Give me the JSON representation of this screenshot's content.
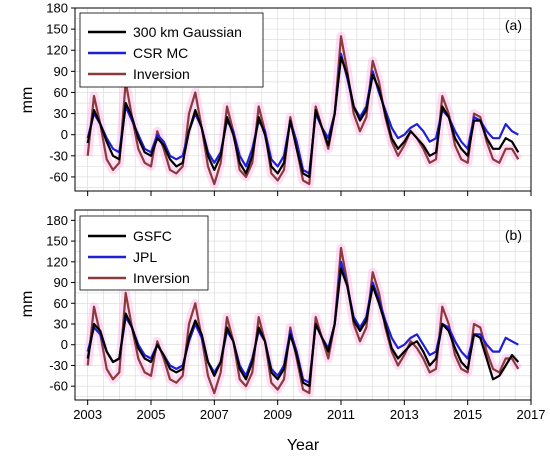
{
  "chart_data": [
    {
      "type": "line",
      "panel_label": "(a)",
      "ylabel": "mm",
      "xlabel": "",
      "ylim": [
        -80,
        180
      ],
      "xlim": [
        2002.6,
        2017
      ],
      "y_ticks": [
        -60,
        -30,
        0,
        30,
        60,
        90,
        120,
        150,
        180
      ],
      "x_ticks": [
        2003,
        2005,
        2007,
        2009,
        2011,
        2013,
        2015,
        2017
      ],
      "x_tick_labels_shown": false,
      "grid": true,
      "legend_position": "top-left",
      "series": [
        {
          "name": "300 km Gaussian",
          "color": "#000000",
          "x": [
            2003.0,
            2003.2,
            2003.4,
            2003.6,
            2003.8,
            2004.0,
            2004.2,
            2004.4,
            2004.6,
            2004.8,
            2005.0,
            2005.2,
            2005.4,
            2005.6,
            2005.8,
            2006.0,
            2006.2,
            2006.4,
            2006.6,
            2006.8,
            2007.0,
            2007.2,
            2007.4,
            2007.6,
            2007.8,
            2008.0,
            2008.2,
            2008.4,
            2008.6,
            2008.8,
            2009.0,
            2009.2,
            2009.4,
            2009.6,
            2009.8,
            2010.0,
            2010.2,
            2010.4,
            2010.6,
            2010.8,
            2011.0,
            2011.2,
            2011.4,
            2011.6,
            2011.8,
            2012.0,
            2012.2,
            2012.4,
            2012.6,
            2012.8,
            2013.0,
            2013.2,
            2013.4,
            2013.6,
            2013.8,
            2014.0,
            2014.2,
            2014.4,
            2014.6,
            2014.8,
            2015.0,
            2015.2,
            2015.4,
            2015.6,
            2015.8,
            2016.0,
            2016.2,
            2016.4,
            2016.6
          ],
          "y": [
            -12,
            35,
            15,
            -10,
            -30,
            -35,
            45,
            25,
            -5,
            -25,
            -30,
            -5,
            -15,
            -35,
            -45,
            -40,
            5,
            35,
            10,
            -30,
            -50,
            -30,
            25,
            0,
            -40,
            -55,
            -30,
            25,
            0,
            -45,
            -55,
            -40,
            20,
            -20,
            -55,
            -60,
            35,
            10,
            -15,
            30,
            110,
            85,
            40,
            20,
            35,
            85,
            65,
            30,
            -5,
            -20,
            -10,
            5,
            -5,
            -15,
            -30,
            -25,
            40,
            25,
            -5,
            -20,
            -30,
            20,
            20,
            -5,
            -20,
            -20,
            -5,
            -10,
            -25
          ]
        },
        {
          "name": "CSR MC",
          "color": "#1f1fd6",
          "x": [
            2003.0,
            2003.2,
            2003.4,
            2003.6,
            2003.8,
            2004.0,
            2004.2,
            2004.4,
            2004.6,
            2004.8,
            2005.0,
            2005.2,
            2005.4,
            2005.6,
            2005.8,
            2006.0,
            2006.2,
            2006.4,
            2006.6,
            2006.8,
            2007.0,
            2007.2,
            2007.4,
            2007.6,
            2007.8,
            2008.0,
            2008.2,
            2008.4,
            2008.6,
            2008.8,
            2009.0,
            2009.2,
            2009.4,
            2009.6,
            2009.8,
            2010.0,
            2010.2,
            2010.4,
            2010.6,
            2010.8,
            2011.0,
            2011.2,
            2011.4,
            2011.6,
            2011.8,
            2012.0,
            2012.2,
            2012.4,
            2012.6,
            2012.8,
            2013.0,
            2013.2,
            2013.4,
            2013.6,
            2013.8,
            2014.0,
            2014.2,
            2014.4,
            2014.6,
            2014.8,
            2015.0,
            2015.2,
            2015.4,
            2015.6,
            2015.8,
            2016.0,
            2016.2,
            2016.4,
            2016.6
          ],
          "y": [
            -5,
            30,
            15,
            -5,
            -20,
            -25,
            40,
            20,
            0,
            -20,
            -25,
            0,
            -10,
            -30,
            -35,
            -30,
            5,
            30,
            10,
            -25,
            -40,
            -25,
            20,
            5,
            -30,
            -45,
            -20,
            20,
            5,
            -35,
            -45,
            -30,
            20,
            -10,
            -50,
            -55,
            30,
            10,
            -5,
            30,
            115,
            80,
            40,
            25,
            40,
            90,
            60,
            35,
            10,
            -5,
            0,
            10,
            15,
            5,
            -10,
            -5,
            35,
            25,
            5,
            -10,
            -20,
            25,
            20,
            5,
            -5,
            -5,
            15,
            5,
            0
          ]
        },
        {
          "name": "Inversion",
          "color": "#8b3a3a",
          "x": [
            2003.0,
            2003.2,
            2003.4,
            2003.6,
            2003.8,
            2004.0,
            2004.2,
            2004.4,
            2004.6,
            2004.8,
            2005.0,
            2005.2,
            2005.4,
            2005.6,
            2005.8,
            2006.0,
            2006.2,
            2006.4,
            2006.6,
            2006.8,
            2007.0,
            2007.2,
            2007.4,
            2007.6,
            2007.8,
            2008.0,
            2008.2,
            2008.4,
            2008.6,
            2008.8,
            2009.0,
            2009.2,
            2009.4,
            2009.6,
            2009.8,
            2010.0,
            2010.2,
            2010.4,
            2010.6,
            2010.8,
            2011.0,
            2011.2,
            2011.4,
            2011.6,
            2011.8,
            2012.0,
            2012.2,
            2012.4,
            2012.6,
            2012.8,
            2013.0,
            2013.2,
            2013.4,
            2013.6,
            2013.8,
            2014.0,
            2014.2,
            2014.4,
            2014.6,
            2014.8,
            2015.0,
            2015.2,
            2015.4,
            2015.6,
            2015.8,
            2016.0,
            2016.2,
            2016.4,
            2016.6
          ],
          "y": [
            -30,
            55,
            15,
            -35,
            -50,
            -40,
            75,
            25,
            -20,
            -40,
            -45,
            5,
            -20,
            -50,
            -55,
            -45,
            30,
            60,
            10,
            -45,
            -70,
            -40,
            40,
            5,
            -50,
            -60,
            -40,
            40,
            5,
            -55,
            -65,
            -50,
            25,
            -20,
            -65,
            -70,
            40,
            10,
            -20,
            30,
            140,
            90,
            30,
            5,
            25,
            105,
            75,
            25,
            -10,
            -30,
            -15,
            5,
            -5,
            -20,
            -40,
            -35,
            55,
            30,
            -15,
            -35,
            -40,
            30,
            25,
            -10,
            -35,
            -40,
            -20,
            -20,
            -35
          ]
        }
      ]
    },
    {
      "type": "line",
      "panel_label": "(b)",
      "ylabel": "mm",
      "xlabel": "Year",
      "ylim": [
        -80,
        195
      ],
      "xlim": [
        2002.6,
        2017
      ],
      "y_ticks": [
        -60,
        -30,
        0,
        30,
        60,
        90,
        120,
        150,
        180
      ],
      "x_ticks": [
        2003,
        2005,
        2007,
        2009,
        2011,
        2013,
        2015,
        2017
      ],
      "x_tick_labels": [
        "2003",
        "2005",
        "2007",
        "2009",
        "2011",
        "2013",
        "2015",
        "2017"
      ],
      "grid": true,
      "legend_position": "top-left",
      "series": [
        {
          "name": "GSFC",
          "color": "#000000",
          "x": [
            2003.0,
            2003.2,
            2003.4,
            2003.6,
            2003.8,
            2004.0,
            2004.2,
            2004.4,
            2004.6,
            2004.8,
            2005.0,
            2005.2,
            2005.4,
            2005.6,
            2005.8,
            2006.0,
            2006.2,
            2006.4,
            2006.6,
            2006.8,
            2007.0,
            2007.2,
            2007.4,
            2007.6,
            2007.8,
            2008.0,
            2008.2,
            2008.4,
            2008.6,
            2008.8,
            2009.0,
            2009.2,
            2009.4,
            2009.6,
            2009.8,
            2010.0,
            2010.2,
            2010.4,
            2010.6,
            2010.8,
            2011.0,
            2011.2,
            2011.4,
            2011.6,
            2011.8,
            2012.0,
            2012.2,
            2012.4,
            2012.6,
            2012.8,
            2013.0,
            2013.2,
            2013.4,
            2013.6,
            2013.8,
            2014.0,
            2014.2,
            2014.4,
            2014.6,
            2014.8,
            2015.0,
            2015.2,
            2015.4,
            2015.6,
            2015.8,
            2016.0,
            2016.2,
            2016.4,
            2016.6
          ],
          "y": [
            -20,
            30,
            20,
            -10,
            -25,
            -20,
            45,
            25,
            -5,
            -20,
            -25,
            0,
            -15,
            -35,
            -40,
            -35,
            10,
            35,
            15,
            -25,
            -45,
            -25,
            25,
            5,
            -35,
            -50,
            -25,
            25,
            5,
            -40,
            -50,
            -35,
            15,
            -15,
            -55,
            -60,
            30,
            10,
            -10,
            30,
            110,
            85,
            35,
            20,
            35,
            85,
            60,
            30,
            -5,
            -20,
            -10,
            0,
            5,
            -10,
            -30,
            -20,
            30,
            20,
            -5,
            -25,
            -35,
            15,
            10,
            -20,
            -50,
            -45,
            -30,
            -15,
            -25
          ]
        },
        {
          "name": "JPL",
          "color": "#1f1fd6",
          "x": [
            2003.0,
            2003.2,
            2003.4,
            2003.6,
            2003.8,
            2004.0,
            2004.2,
            2004.4,
            2004.6,
            2004.8,
            2005.0,
            2005.2,
            2005.4,
            2005.6,
            2005.8,
            2006.0,
            2006.2,
            2006.4,
            2006.6,
            2006.8,
            2007.0,
            2007.2,
            2007.4,
            2007.6,
            2007.8,
            2008.0,
            2008.2,
            2008.4,
            2008.6,
            2008.8,
            2009.0,
            2009.2,
            2009.4,
            2009.6,
            2009.8,
            2010.0,
            2010.2,
            2010.4,
            2010.6,
            2010.8,
            2011.0,
            2011.2,
            2011.4,
            2011.6,
            2011.8,
            2012.0,
            2012.2,
            2012.4,
            2012.6,
            2012.8,
            2013.0,
            2013.2,
            2013.4,
            2013.6,
            2013.8,
            2014.0,
            2014.2,
            2014.4,
            2014.6,
            2014.8,
            2015.0,
            2015.2,
            2015.4,
            2015.6,
            2015.8,
            2016.0,
            2016.2,
            2016.4,
            2016.6
          ],
          "y": [
            -10,
            25,
            15,
            -10,
            -25,
            -20,
            40,
            25,
            0,
            -15,
            -20,
            0,
            -15,
            -30,
            -35,
            -30,
            5,
            30,
            10,
            -25,
            -40,
            -25,
            20,
            5,
            -30,
            -45,
            -20,
            20,
            5,
            -35,
            -45,
            -30,
            20,
            -10,
            -50,
            -55,
            30,
            10,
            -5,
            30,
            120,
            85,
            40,
            25,
            40,
            90,
            65,
            35,
            10,
            -5,
            0,
            10,
            15,
            0,
            -15,
            -10,
            30,
            25,
            5,
            -10,
            -20,
            15,
            15,
            0,
            -10,
            -10,
            10,
            5,
            0
          ]
        },
        {
          "name": "Inversion",
          "color": "#8b3a3a",
          "x": [
            2003.0,
            2003.2,
            2003.4,
            2003.6,
            2003.8,
            2004.0,
            2004.2,
            2004.4,
            2004.6,
            2004.8,
            2005.0,
            2005.2,
            2005.4,
            2005.6,
            2005.8,
            2006.0,
            2006.2,
            2006.4,
            2006.6,
            2006.8,
            2007.0,
            2007.2,
            2007.4,
            2007.6,
            2007.8,
            2008.0,
            2008.2,
            2008.4,
            2008.6,
            2008.8,
            2009.0,
            2009.2,
            2009.4,
            2009.6,
            2009.8,
            2010.0,
            2010.2,
            2010.4,
            2010.6,
            2010.8,
            2011.0,
            2011.2,
            2011.4,
            2011.6,
            2011.8,
            2012.0,
            2012.2,
            2012.4,
            2012.6,
            2012.8,
            2013.0,
            2013.2,
            2013.4,
            2013.6,
            2013.8,
            2014.0,
            2014.2,
            2014.4,
            2014.6,
            2014.8,
            2015.0,
            2015.2,
            2015.4,
            2015.6,
            2015.8,
            2016.0,
            2016.2,
            2016.4,
            2016.6
          ],
          "y": [
            -30,
            55,
            15,
            -35,
            -50,
            -40,
            75,
            25,
            -20,
            -40,
            -45,
            5,
            -20,
            -50,
            -55,
            -45,
            30,
            60,
            10,
            -45,
            -70,
            -40,
            40,
            5,
            -50,
            -60,
            -40,
            40,
            5,
            -55,
            -65,
            -50,
            25,
            -20,
            -65,
            -70,
            40,
            10,
            -20,
            30,
            140,
            90,
            30,
            5,
            25,
            105,
            75,
            25,
            -10,
            -30,
            -15,
            5,
            -5,
            -20,
            -40,
            -35,
            55,
            30,
            -15,
            -35,
            -40,
            30,
            25,
            -10,
            -35,
            -40,
            -20,
            -20,
            -35
          ]
        }
      ]
    }
  ]
}
